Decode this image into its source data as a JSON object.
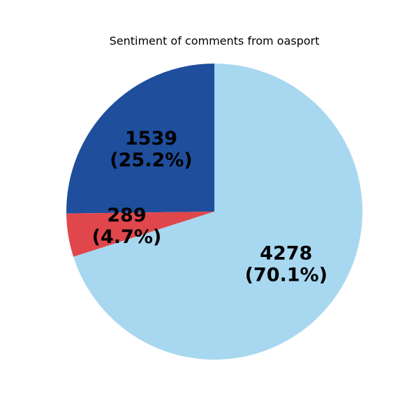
{
  "chart_data": {
    "type": "pie",
    "title": "Sentiment of comments from oasport",
    "start_angle_deg": 90,
    "direction": "counterclockwise",
    "slices": [
      {
        "value": 1539,
        "label": "1539\n(25.2%)",
        "color": "#1f4e9c"
      },
      {
        "value": 289,
        "label": "289\n(4.7%)",
        "color": "#e0474c"
      },
      {
        "value": 4278,
        "label": "4278\n(70.1%)",
        "color": "#a8d8f0"
      }
    ]
  }
}
